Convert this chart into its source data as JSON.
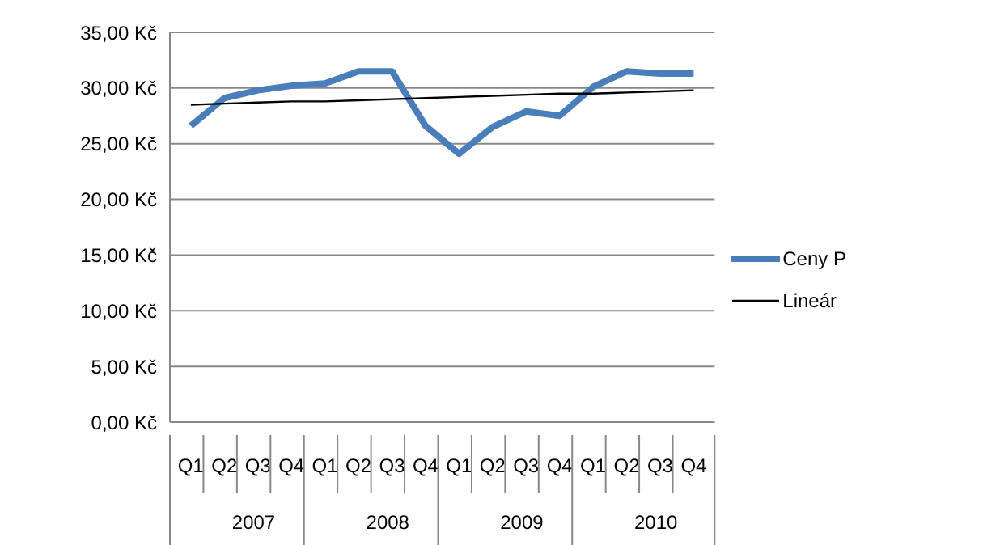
{
  "chart_data": {
    "type": "line",
    "categories": [
      "Q1",
      "Q2",
      "Q3",
      "Q4",
      "Q1",
      "Q2",
      "Q3",
      "Q4",
      "Q1",
      "Q2",
      "Q3",
      "Q4",
      "Q1",
      "Q2",
      "Q3",
      "Q4"
    ],
    "series": [
      {
        "name": "Ceny P",
        "color": "#4a7ebb",
        "values": [
          26.6,
          29.1,
          29.8,
          30.2,
          30.4,
          31.5,
          31.5,
          26.6,
          24.1,
          26.5,
          27.9,
          27.5,
          30.1,
          31.5,
          31.3,
          31.3
        ]
      },
      {
        "name": "Lineár",
        "color": "#000000",
        "values": [
          28.5,
          28.6,
          28.7,
          28.8,
          28.8,
          28.9,
          29.0,
          29.1,
          29.2,
          29.3,
          29.4,
          29.5,
          29.5,
          29.6,
          29.7,
          29.8
        ]
      }
    ],
    "annotations": [
      "2007",
      "2008",
      "2009",
      "2010"
    ],
    "ylim": [
      0,
      35
    ],
    "yticks": [
      {
        "value": 0,
        "label": "0,00 Kč"
      },
      {
        "value": 5,
        "label": "5,00 Kč"
      },
      {
        "value": 10,
        "label": "10,00 Kč"
      },
      {
        "value": 15,
        "label": "15,00 Kč"
      },
      {
        "value": 20,
        "label": "20,00 Kč"
      },
      {
        "value": 25,
        "label": "25,00 Kč"
      },
      {
        "value": 30,
        "label": "30,00 Kč"
      },
      {
        "value": 35,
        "label": "35,00 Kč"
      }
    ],
    "grid": "y",
    "legend": "right",
    "marker": "none",
    "line_style": "solid"
  }
}
